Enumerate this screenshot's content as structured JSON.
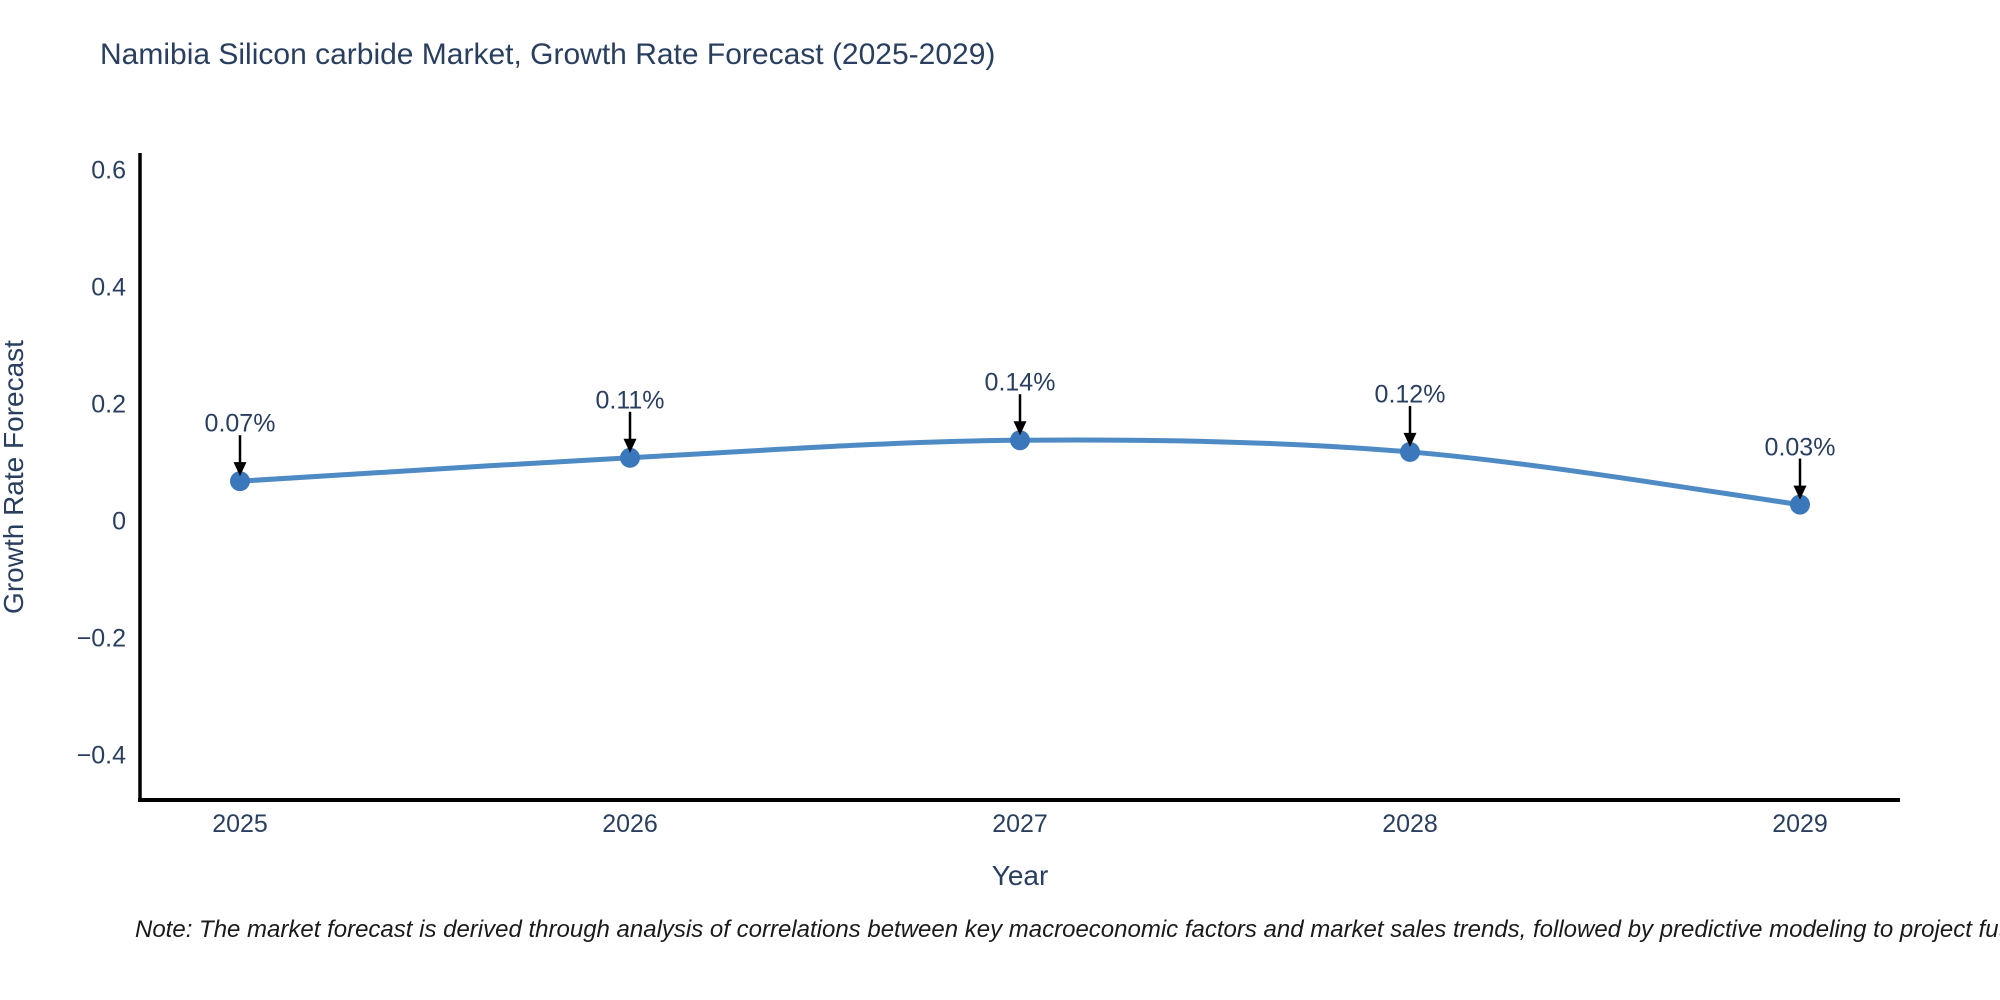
{
  "note": "Note: The market forecast is derived through analysis of correlations between key macroeconomic factors and market sales trends, followed by predictive modeling to project future sa",
  "chart_data": {
    "type": "line",
    "title": "Namibia Silicon carbide Market, Growth Rate Forecast (2025-2029)",
    "xlabel": "Year",
    "ylabel": "Growth Rate Forecast",
    "x": [
      "2025",
      "2026",
      "2027",
      "2028",
      "2029"
    ],
    "series": [
      {
        "name": "Growth Rate Forecast",
        "values": [
          0.07,
          0.11,
          0.14,
          0.12,
          0.03
        ]
      }
    ],
    "point_labels": [
      "0.07%",
      "0.11%",
      "0.14%",
      "0.12%",
      "0.03%"
    ],
    "yticks": [
      {
        "value": -0.4,
        "label": "−0.4"
      },
      {
        "value": -0.2,
        "label": "−0.2"
      },
      {
        "value": 0,
        "label": "0"
      },
      {
        "value": 0.2,
        "label": "0.2"
      },
      {
        "value": 0.4,
        "label": "0.4"
      },
      {
        "value": 0.6,
        "label": "0.6"
      }
    ],
    "ylim": [
      -0.475,
      0.631
    ],
    "grid": false,
    "legend": "none",
    "colors": {
      "line": "#4e8ac4",
      "marker": "#3a78bb",
      "arrow": "#000000",
      "axis": "#000000",
      "text": "#2a3f5f"
    }
  }
}
